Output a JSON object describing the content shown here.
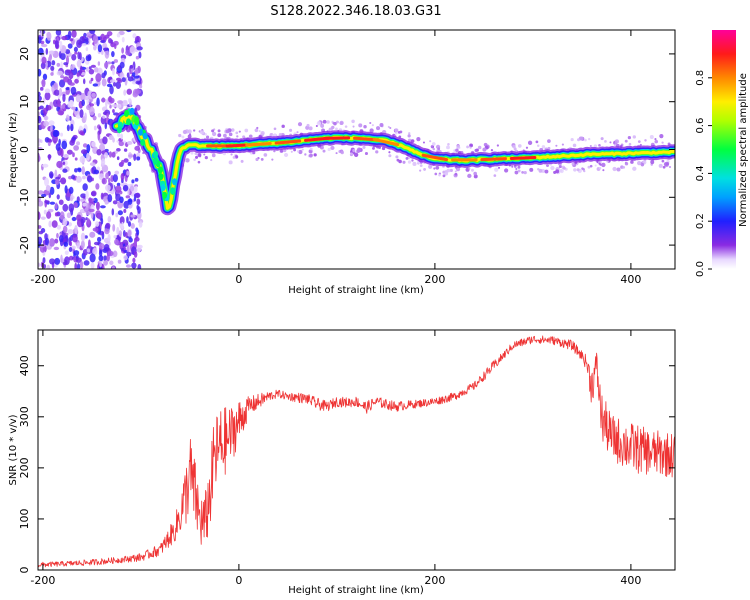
{
  "title": "S128.2022.346.18.03.G31",
  "colors": {
    "snr_line": "#ee3333",
    "ridge_core": "#e01010",
    "ridge_mid": "#22d84a",
    "ridge_edge": "#2a2ae0",
    "noise": "#6a0fd8"
  },
  "chart_data": [
    {
      "type": "heatmap",
      "name": "spectrogram",
      "xlabel": "Height of straight line (km)",
      "ylabel": "Frequency (Hz)",
      "xlim": [
        -205,
        445
      ],
      "ylim": [
        -25,
        25
      ],
      "xticks": [
        -200,
        0,
        200,
        400
      ],
      "yticks": [
        -20,
        -10,
        0,
        10,
        20
      ],
      "colorbar": {
        "label": "Normalized spectral amplitude",
        "range": [
          0,
          1
        ],
        "ticks": [
          0.0,
          0.2,
          0.4,
          0.6,
          0.8
        ],
        "colormap": "rainbow (white → violet → blue → cyan → green → yellow → orange → red → magenta)"
      },
      "noise_region_x": [
        -205,
        -100
      ],
      "ridge": {
        "x": [
          -125,
          -110,
          -100,
          -90,
          -80,
          -72,
          -60,
          -50,
          -40,
          -20,
          0,
          20,
          50,
          80,
          100,
          130,
          150,
          170,
          185,
          200,
          230,
          260,
          290,
          320,
          360,
          400,
          445
        ],
        "frequency": [
          5,
          7,
          3,
          0,
          -4,
          -13,
          0,
          1,
          0.8,
          0.7,
          0.8,
          1.1,
          1.5,
          2.2,
          2.5,
          2.3,
          1.8,
          0.5,
          -1,
          -2,
          -2.3,
          -2,
          -1.8,
          -1.5,
          -1,
          -0.8,
          -0.5
        ],
        "amplitude": [
          0.35,
          0.4,
          0.35,
          0.4,
          0.35,
          0.3,
          0.5,
          0.55,
          0.7,
          0.85,
          0.9,
          0.8,
          0.85,
          0.9,
          0.9,
          0.85,
          0.8,
          0.7,
          0.75,
          0.85,
          0.8,
          0.85,
          0.9,
          0.6,
          0.7,
          0.7,
          0.65
        ]
      },
      "grid": false
    },
    {
      "type": "line",
      "name": "snr",
      "xlabel": "Height of straight line (km)",
      "ylabel": "SNR (10 * v/v)",
      "xlim": [
        -205,
        445
      ],
      "ylim": [
        0,
        470
      ],
      "xticks": [
        -200,
        0,
        200,
        400
      ],
      "yticks": [
        0,
        100,
        200,
        300,
        400
      ],
      "x": [
        -205,
        -180,
        -150,
        -120,
        -100,
        -80,
        -65,
        -55,
        -50,
        -45,
        -40,
        -35,
        -30,
        -25,
        -20,
        -10,
        0,
        10,
        20,
        30,
        40,
        50,
        60,
        70,
        80,
        90,
        100,
        110,
        120,
        130,
        140,
        150,
        160,
        180,
        200,
        220,
        240,
        260,
        270,
        280,
        300,
        320,
        340,
        350,
        355,
        360,
        365,
        370,
        380,
        400,
        420,
        445
      ],
      "y": [
        10,
        12,
        15,
        20,
        25,
        40,
        80,
        140,
        190,
        150,
        100,
        90,
        140,
        220,
        240,
        260,
        290,
        320,
        330,
        340,
        345,
        340,
        338,
        335,
        325,
        320,
        330,
        328,
        330,
        318,
        330,
        325,
        320,
        325,
        330,
        340,
        360,
        400,
        420,
        440,
        452,
        450,
        440,
        420,
        405,
        360,
        400,
        300,
        260,
        240,
        230,
        225
      ],
      "noise_amplitude": [
        5,
        5,
        6,
        6,
        8,
        12,
        25,
        60,
        80,
        70,
        60,
        55,
        70,
        80,
        80,
        60,
        45,
        20,
        15,
        10,
        8,
        8,
        10,
        10,
        12,
        10,
        10,
        10,
        10,
        12,
        10,
        10,
        10,
        8,
        8,
        8,
        8,
        10,
        8,
        8,
        8,
        8,
        10,
        10,
        15,
        40,
        30,
        50,
        45,
        50,
        45,
        45
      ],
      "grid": false
    }
  ]
}
